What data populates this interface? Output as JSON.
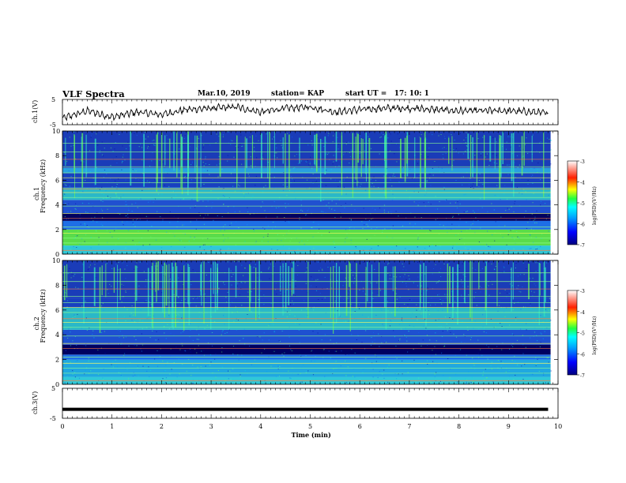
{
  "header": {
    "title": "VLF Spectra",
    "date": "Mar.10, 2019",
    "station": "station= KAP",
    "start": "start UT =   17: 10: 1"
  },
  "chart_data": [
    {
      "type": "line",
      "panel": "ch1-waveform",
      "ylabel": "ch.1(V)",
      "ylim": [
        -5,
        5
      ],
      "yticks": [
        "5",
        "-5"
      ],
      "xlim": [
        0,
        10
      ],
      "line_color": "#000000",
      "note_values": "noisy waveform oscillating roughly between -3 and +3 V",
      "x": [
        0,
        0.5,
        1,
        1.5,
        2,
        2.5,
        3,
        3.5,
        4,
        4.5,
        5,
        5.5,
        6,
        6.5,
        7,
        7.5,
        8,
        8.5,
        9,
        9.5,
        9.8
      ],
      "values": [
        -2.5,
        0.5,
        -2,
        0,
        -1,
        1,
        1.5,
        2,
        0,
        1.5,
        2,
        0,
        1,
        1.5,
        1.5,
        1,
        0.5,
        0.5,
        0.5,
        0,
        -0.5
      ]
    },
    {
      "type": "heatmap",
      "panel": "ch1-spectrogram",
      "ylabel": "ch.1",
      "ylabel2": "Frequency (kHz)",
      "ylim": [
        0,
        10
      ],
      "yticks": [
        "0",
        "2",
        "4",
        "6",
        "8",
        "10"
      ],
      "xlim": [
        0,
        9.85
      ],
      "band_colors_by_freq": [
        {
          "from": 0,
          "to": 0.7,
          "color": "#2fc8d8"
        },
        {
          "from": 0.7,
          "to": 2.0,
          "color": "#5adc4a"
        },
        {
          "from": 2.0,
          "to": 2.7,
          "color": "#1e6fe6"
        },
        {
          "from": 2.7,
          "to": 3.3,
          "color": "#000060"
        },
        {
          "from": 3.3,
          "to": 4.4,
          "color": "#2050d0"
        },
        {
          "from": 4.4,
          "to": 5.4,
          "color": "#2ab8c8"
        },
        {
          "from": 5.4,
          "to": 6.6,
          "color": "#1840c0"
        },
        {
          "from": 6.6,
          "to": 7.0,
          "color": "#28a0e0"
        },
        {
          "from": 7.0,
          "to": 10.0,
          "color": "#1a3cb8"
        }
      ],
      "colorbar": {
        "label": "log(PSD)(V²/Hz)",
        "range": [
          -7,
          -3
        ],
        "ticks": [
          "-3",
          "-4",
          "-5",
          "-6",
          "-7"
        ]
      }
    },
    {
      "type": "heatmap",
      "panel": "ch2-spectrogram",
      "ylabel": "ch.2",
      "ylabel2": "Frequency (kHz)",
      "ylim": [
        0,
        10
      ],
      "yticks": [
        "0",
        "2",
        "4",
        "6",
        "8",
        "10"
      ],
      "xlim": [
        0,
        9.85
      ],
      "band_colors_by_freq": [
        {
          "from": 0,
          "to": 0.6,
          "color": "#2fc8d8"
        },
        {
          "from": 0.6,
          "to": 2.0,
          "color": "#20a8e0"
        },
        {
          "from": 2.0,
          "to": 2.4,
          "color": "#1e6fe6"
        },
        {
          "from": 2.4,
          "to": 3.2,
          "color": "#000060"
        },
        {
          "from": 3.2,
          "to": 4.4,
          "color": "#1e50d0"
        },
        {
          "from": 4.4,
          "to": 6.2,
          "color": "#2ab8c8"
        },
        {
          "from": 6.2,
          "to": 7.0,
          "color": "#1840c0"
        },
        {
          "from": 7.0,
          "to": 10.0,
          "color": "#1a3cb8"
        }
      ],
      "colorbar": {
        "label": "log(PSD)(V²/Hz)",
        "range": [
          -7,
          -3
        ],
        "ticks": [
          "-3",
          "-4",
          "-5",
          "-6",
          "-7"
        ]
      }
    },
    {
      "type": "line",
      "panel": "ch3-waveform",
      "ylabel": "ch.3(V)",
      "ylim": [
        -5,
        5
      ],
      "yticks": [
        "5",
        "-5"
      ],
      "xlim": [
        0,
        10
      ],
      "xlabel": "Time (min)",
      "xticks": [
        "0",
        "1",
        "2",
        "3",
        "4",
        "5",
        "6",
        "7",
        "8",
        "9",
        "10"
      ],
      "x": [
        0,
        9.8
      ],
      "values": [
        -2,
        -2
      ]
    }
  ]
}
